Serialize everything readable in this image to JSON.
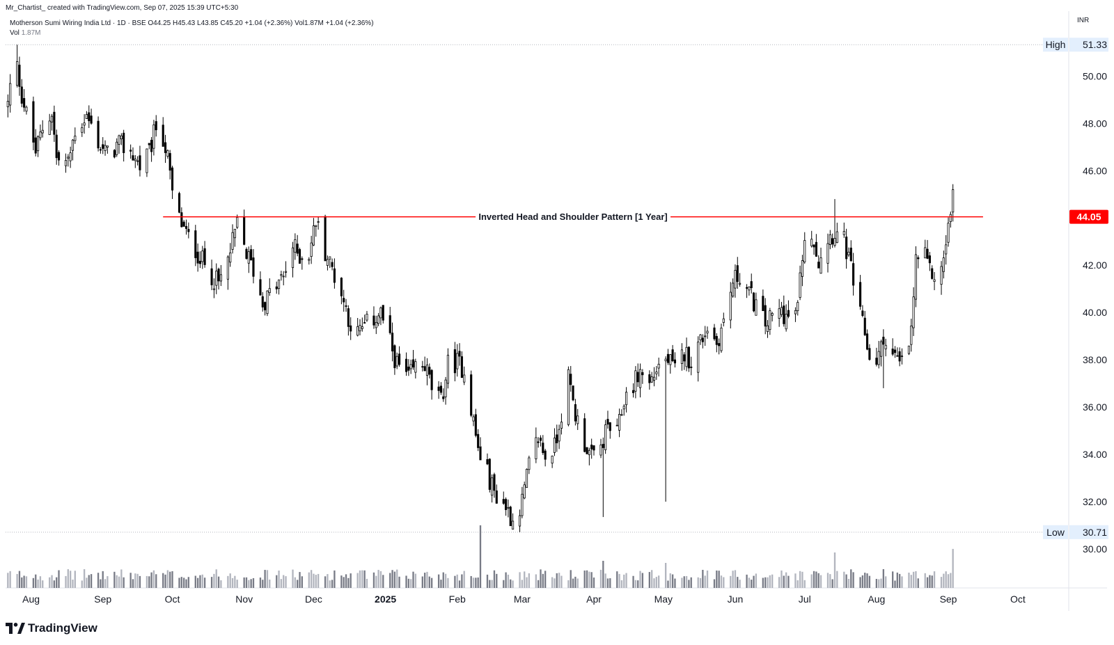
{
  "header": {
    "credit": "Mr_Chartist_ created with TradingView.com, Sep 07, 2025 15:39 UTC+5:30",
    "symbol_line": "Motherson Sumi Wiring India Ltd · 1D · BSE  O44.25  H45.43  L43.85  C45.20  +1.04 (+2.36%)  Vol1.87M  +1.04 (+2.36%)",
    "volume_label": "Vol",
    "volume_value": "1.87M",
    "currency": "INR"
  },
  "brand": {
    "name": "TradingView",
    "logo_icon": "tradingview-logo-icon"
  },
  "colors": {
    "up_body": "#ffffff",
    "down_body": "#000000",
    "candle_outline": "#000000",
    "volume_up": "#b2b5be",
    "volume_down": "#787b86",
    "neckline": "#ff0000",
    "current_price_bg": "#ff0000",
    "grid_dots": "#b2b5be",
    "axis_badge_bg": "#e3effd"
  },
  "chart_data": {
    "type": "candlestick",
    "title": "Motherson Sumi Wiring India Ltd · 1D · BSE",
    "last_bar": {
      "open": 44.25,
      "high": 45.43,
      "low": 43.85,
      "close": 45.2,
      "change": "+1.04 (+2.36%)",
      "volume": "1.87M"
    },
    "x_axis_labels": [
      "Aug",
      "Sep",
      "Oct",
      "Nov",
      "Dec",
      "2025",
      "Feb",
      "Mar",
      "Apr",
      "May",
      "Jun",
      "Jul",
      "Aug",
      "Sep",
      "Oct"
    ],
    "y_axis_ticks": [
      30,
      32,
      34,
      36,
      38,
      40,
      42,
      44,
      46,
      48,
      50
    ],
    "y_tick_labels": [
      "30.00",
      "32.00",
      "34.00",
      "36.00",
      "38.00",
      "40.00",
      "42.00",
      "44.00",
      "46.00",
      "48.00",
      "50.00"
    ],
    "ylim": [
      28.35,
      52.75
    ],
    "high": {
      "label": "High",
      "value": 51.33
    },
    "low": {
      "label": "Low",
      "value": 30.71
    },
    "current_price": {
      "value": 44.05,
      "label": "44.05"
    },
    "annotation": {
      "text": "Inverted Head and Shoulder Pattern [1 Year]",
      "price": 44.05,
      "start_date": "2024-09-30",
      "end_date": "2025-09-19"
    },
    "grid": false,
    "anchors": [
      [
        "2024-07-25",
        48.8
      ],
      [
        "2024-07-28",
        51.0
      ],
      [
        "2024-07-31",
        49.2
      ],
      [
        "2024-08-06",
        46.8
      ],
      [
        "2024-08-09",
        47.8
      ],
      [
        "2024-08-13",
        48.5
      ],
      [
        "2024-08-15",
        46.5
      ],
      [
        "2024-08-20",
        46.3
      ],
      [
        "2024-08-23",
        47.7
      ],
      [
        "2024-08-28",
        48.3
      ],
      [
        "2024-09-03",
        47.0
      ],
      [
        "2024-09-06",
        46.7
      ],
      [
        "2024-09-11",
        47.1
      ],
      [
        "2024-09-16",
        46.8
      ],
      [
        "2024-09-20",
        46.2
      ],
      [
        "2024-09-24",
        46.7
      ],
      [
        "2024-09-28",
        48.3
      ],
      [
        "2024-10-02",
        46.5
      ],
      [
        "2024-10-04",
        45.0
      ],
      [
        "2024-10-07",
        44.0
      ],
      [
        "2024-10-10",
        43.3
      ],
      [
        "2024-10-15",
        42.5
      ],
      [
        "2024-10-20",
        41.7
      ],
      [
        "2024-10-24",
        41.2
      ],
      [
        "2024-10-28",
        42.2
      ],
      [
        "2024-11-01",
        43.7
      ],
      [
        "2024-11-05",
        42.5
      ],
      [
        "2024-11-08",
        41.8
      ],
      [
        "2024-11-12",
        40.4
      ],
      [
        "2024-11-17",
        41.0
      ],
      [
        "2024-11-21",
        41.5
      ],
      [
        "2024-11-25",
        42.8
      ],
      [
        "2024-11-28",
        42.4
      ],
      [
        "2024-12-02",
        42.5
      ],
      [
        "2024-12-05",
        43.9
      ],
      [
        "2024-12-09",
        42.6
      ],
      [
        "2024-12-13",
        41.6
      ],
      [
        "2024-12-17",
        40.5
      ],
      [
        "2024-12-20",
        39.5
      ],
      [
        "2024-12-23",
        39.1
      ],
      [
        "2024-12-26",
        39.4
      ],
      [
        "2025-01-02",
        40.0
      ],
      [
        "2025-01-06",
        38.7
      ],
      [
        "2025-01-09",
        37.8
      ],
      [
        "2025-01-14",
        37.2
      ],
      [
        "2025-01-17",
        37.7
      ],
      [
        "2025-01-21",
        37.8
      ],
      [
        "2025-01-24",
        36.8
      ],
      [
        "2025-01-28",
        36.2
      ],
      [
        "2025-01-31",
        37.8
      ],
      [
        "2025-02-04",
        37.9
      ],
      [
        "2025-02-07",
        37.6
      ],
      [
        "2025-02-10",
        36.0
      ],
      [
        "2025-02-13",
        34.2
      ],
      [
        "2025-02-17",
        33.2
      ],
      [
        "2025-02-20",
        32.4
      ],
      [
        "2025-02-25",
        31.8
      ],
      [
        "2025-02-28",
        31.2
      ],
      [
        "2025-03-04",
        32.0
      ],
      [
        "2025-03-07",
        33.5
      ],
      [
        "2025-03-11",
        34.7
      ],
      [
        "2025-03-14",
        33.9
      ],
      [
        "2025-03-18",
        34.3
      ],
      [
        "2025-03-21",
        35.8
      ],
      [
        "2025-03-24",
        37.2
      ],
      [
        "2025-03-27",
        35.7
      ],
      [
        "2025-03-31",
        34.5
      ],
      [
        "2025-04-03",
        33.8
      ],
      [
        "2025-04-07",
        34.3
      ],
      [
        "2025-04-10",
        35.2
      ],
      [
        "2025-04-14",
        34.8
      ],
      [
        "2025-04-17",
        36.3
      ],
      [
        "2025-04-21",
        37.0
      ],
      [
        "2025-04-24",
        37.5
      ],
      [
        "2025-04-28",
        37.0
      ],
      [
        "2025-05-02",
        37.8
      ],
      [
        "2025-05-06",
        38.0
      ],
      [
        "2025-05-09",
        37.5
      ],
      [
        "2025-05-13",
        38.3
      ],
      [
        "2025-05-16",
        38.0
      ],
      [
        "2025-05-20",
        38.8
      ],
      [
        "2025-05-23",
        39.4
      ],
      [
        "2025-05-27",
        38.7
      ],
      [
        "2025-05-30",
        39.6
      ],
      [
        "2025-06-03",
        41.3
      ],
      [
        "2025-06-06",
        41.6
      ],
      [
        "2025-06-10",
        40.8
      ],
      [
        "2025-06-13",
        40.3
      ],
      [
        "2025-06-17",
        39.5
      ],
      [
        "2025-06-20",
        39.8
      ],
      [
        "2025-06-24",
        40.1
      ],
      [
        "2025-06-27",
        39.7
      ],
      [
        "2025-07-01",
        40.2
      ],
      [
        "2025-07-03",
        42.5
      ],
      [
        "2025-07-07",
        43.5
      ],
      [
        "2025-07-10",
        42.2
      ],
      [
        "2025-07-14",
        43.2
      ],
      [
        "2025-07-17",
        43.4
      ],
      [
        "2025-07-21",
        43.0
      ],
      [
        "2025-07-24",
        41.8
      ],
      [
        "2025-07-27",
        40.2
      ],
      [
        "2025-07-30",
        39.1
      ],
      [
        "2025-08-02",
        37.6
      ],
      [
        "2025-08-05",
        38.2
      ],
      [
        "2025-08-08",
        39.0
      ],
      [
        "2025-08-11",
        38.3
      ],
      [
        "2025-08-14",
        37.8
      ],
      [
        "2025-08-17",
        38.0
      ],
      [
        "2025-08-19",
        39.2
      ],
      [
        "2025-08-21",
        42.2
      ],
      [
        "2025-08-24",
        42.6
      ],
      [
        "2025-08-27",
        41.7
      ],
      [
        "2025-08-29",
        41.6
      ],
      [
        "2025-09-01",
        41.7
      ],
      [
        "2025-09-03",
        43.0
      ],
      [
        "2025-09-05",
        44.2
      ],
      [
        "2025-09-06",
        45.2
      ]
    ],
    "spikes": [
      {
        "date": "2025-02-14",
        "low": 34.35,
        "volume": 3.0
      },
      {
        "date": "2025-04-08",
        "low": 31.35,
        "volume": 1.3
      },
      {
        "date": "2025-05-05",
        "low": 32.0,
        "volume": 1.2
      },
      {
        "date": "2025-07-17",
        "high": 44.8,
        "volume": 1.7
      },
      {
        "date": "2025-08-07",
        "low": 36.8,
        "volume": 0.9
      }
    ]
  }
}
